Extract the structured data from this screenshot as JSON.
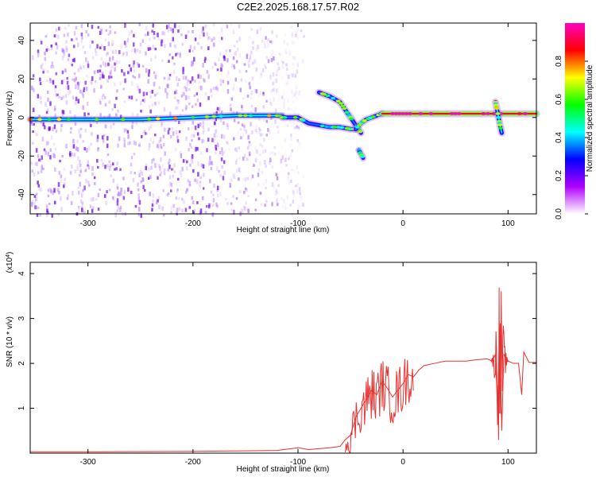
{
  "title": "C2E2.2025.168.17.57.R02",
  "chart_data": [
    {
      "type": "heatmap",
      "xlabel": "Height of straight line (km)",
      "ylabel": "Frequency (Hz)",
      "xlim": [
        -355,
        127
      ],
      "ylim": [
        -50,
        49
      ],
      "xticks": [
        -300,
        -200,
        -100,
        0,
        100
      ],
      "xtick_labels": [
        "-300",
        "-200",
        "-100",
        "0",
        "100"
      ],
      "yticks": [
        -40,
        -20,
        0,
        20,
        40
      ],
      "ytick_labels": [
        "-40",
        "-20",
        "0",
        "20",
        "40"
      ],
      "colorbar": {
        "label": "Normalized spectral amplitude",
        "range": [
          0,
          1
        ],
        "ticks": [
          0.0,
          0.2,
          0.4,
          0.6,
          0.8
        ],
        "tick_labels": [
          "0.0",
          "0.2",
          "0.4",
          "0.6",
          "0.8"
        ],
        "colors": [
          "#ffffff",
          "#b000ff",
          "#0000ff",
          "#00ffff",
          "#00ff00",
          "#ffff00",
          "#ff0000",
          "#ff00c0"
        ]
      },
      "noise_region_x": [
        -355,
        -120
      ],
      "traces": [
        {
          "x": [
            -355,
            -300,
            -250,
            -200,
            -160,
            -130,
            -115
          ],
          "y": [
            -1,
            -1,
            -1,
            0,
            1,
            1,
            1
          ],
          "intensity": 0.45
        },
        {
          "x": [
            -115,
            -100,
            -90,
            -80,
            -70,
            -60,
            -50,
            -45
          ],
          "y": [
            0,
            0,
            -3,
            -4,
            -5,
            -5,
            -6,
            -6
          ],
          "intensity": 0.35
        },
        {
          "x": [
            -80,
            -70,
            -60,
            -55,
            -50,
            -45,
            -40
          ],
          "y": [
            13,
            11,
            8,
            4,
            0,
            -4,
            -8
          ],
          "intensity": 0.35
        },
        {
          "x": [
            -42,
            -40,
            -38
          ],
          "y": [
            -17,
            -19,
            -21
          ],
          "intensity": 0.3
        },
        {
          "x": [
            -45,
            -40,
            -35,
            -30,
            -20
          ],
          "y": [
            -6,
            -3,
            -1,
            0,
            2
          ],
          "intensity": 0.35
        },
        {
          "x": [
            -20,
            0,
            20,
            40,
            60,
            85,
            95,
            127
          ],
          "y": [
            2,
            2,
            2,
            2,
            2,
            2,
            2,
            2
          ],
          "intensity": 0.9
        },
        {
          "x": [
            88,
            90,
            92,
            94
          ],
          "y": [
            8,
            3,
            -3,
            -8
          ],
          "intensity": 0.4
        }
      ]
    },
    {
      "type": "line",
      "xlabel": "Height of straight line (km)",
      "ylabel": "SNR (10 * v/v)",
      "y_multiplier": "(x10^4)",
      "xlim": [
        -355,
        127
      ],
      "ylim": [
        0,
        4.25
      ],
      "xticks": [
        -300,
        -200,
        -100,
        0,
        100
      ],
      "xtick_labels": [
        "-300",
        "-200",
        "-100",
        "0",
        "100"
      ],
      "yticks": [
        1,
        2,
        3,
        4
      ],
      "ytick_labels": [
        "1",
        "2",
        "3",
        "4"
      ],
      "color": "#e8302e",
      "x": [
        -355,
        -300,
        -200,
        -150,
        -120,
        -100,
        -90,
        -80,
        -70,
        -60,
        -55,
        -50,
        -45,
        -40,
        -35,
        -30,
        -25,
        -20,
        -15,
        -10,
        -5,
        0,
        5,
        10,
        15,
        20,
        30,
        40,
        50,
        60,
        70,
        80,
        85,
        88,
        90,
        92,
        94,
        96,
        100,
        105,
        110,
        113,
        115,
        120,
        127
      ],
      "y": [
        0.03,
        0.03,
        0.04,
        0.05,
        0.06,
        0.12,
        0.08,
        0.1,
        0.12,
        0.15,
        0.3,
        0.4,
        0.8,
        1.0,
        1.2,
        1.4,
        1.3,
        1.6,
        1.45,
        1.25,
        1.4,
        1.55,
        1.75,
        1.7,
        1.85,
        1.95,
        2.0,
        2.05,
        2.05,
        2.05,
        2.08,
        2.1,
        2.05,
        2.2,
        1.0,
        2.8,
        0.5,
        2.2,
        2.05,
        2.0,
        2.0,
        1.3,
        2.25,
        2.02,
        2.02
      ]
    }
  ]
}
